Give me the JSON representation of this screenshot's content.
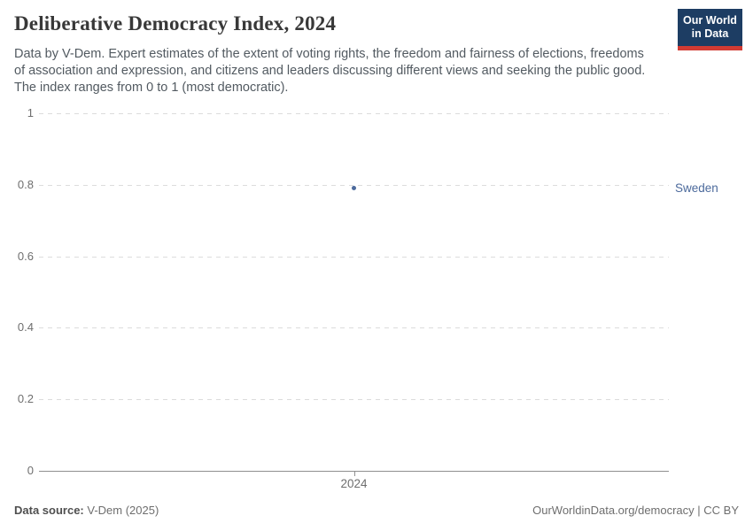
{
  "header": {
    "title": "Deliberative Democracy Index, 2024",
    "subtitle_lines": [
      "Data by V-Dem. Expert estimates of the extent of voting rights, the freedom and fairness of elections, freedoms",
      "of association and expression, and citizens and leaders discussing different views and seeking the public good.",
      "The index ranges from 0 to 1 (most democratic)."
    ],
    "logo": {
      "line1": "Our World",
      "line2": "in Data",
      "bg_color": "#1d3d63",
      "accent_color": "#d23b33"
    }
  },
  "chart_data": {
    "type": "scatter",
    "title": "Deliberative Democracy Index, 2024",
    "xlabel": "",
    "ylabel": "",
    "ylim": [
      0,
      1
    ],
    "yticks": [
      0,
      0.2,
      0.4,
      0.6,
      0.8,
      1
    ],
    "xticks": [
      "2024"
    ],
    "grid": "horizontal-dashed",
    "legend_position": "entity-label-right",
    "series": [
      {
        "name": "Sweden",
        "color": "#4c6a9c",
        "x": [
          2024
        ],
        "values": [
          0.79
        ]
      }
    ]
  },
  "footer": {
    "source_label": "Data source:",
    "source_value": "V-Dem (2025)",
    "attribution": "OurWorldinData.org/democracy | CC BY"
  }
}
